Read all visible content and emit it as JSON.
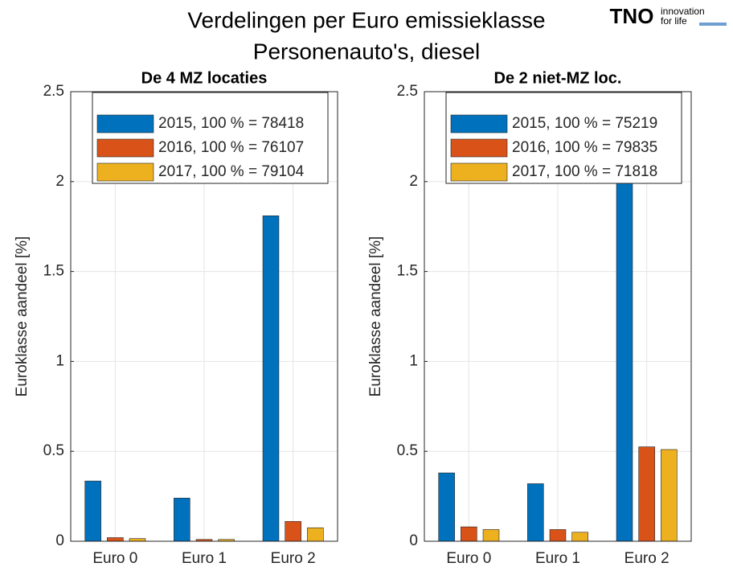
{
  "title": [
    "Verdelingen per Euro emissieklasse",
    "Personenauto's, diesel"
  ],
  "logo": {
    "brand": "TNO",
    "tagline": [
      "innovation",
      "for life"
    ]
  },
  "chart_data": [
    {
      "type": "bar",
      "title": "De 4 MZ locaties",
      "y_label": "Euroklasse aandeel [%]",
      "categories": [
        "Euro 0",
        "Euro 1",
        "Euro 2"
      ],
      "series": [
        {
          "name": "2015, 100 % = 78418",
          "color": "#0072bd",
          "values": [
            0.335,
            0.24,
            1.81
          ]
        },
        {
          "name": "2016, 100 % = 76107",
          "color": "#d95319",
          "values": [
            0.02,
            0.01,
            0.11
          ]
        },
        {
          "name": "2017, 100 % = 79104",
          "color": "#edb120",
          "values": [
            0.015,
            0.01,
            0.075
          ]
        }
      ],
      "ylim": [
        0,
        2.5
      ],
      "yticks": [
        0,
        0.5,
        1,
        1.5,
        2,
        2.5
      ],
      "grid": true,
      "legend": "north"
    },
    {
      "type": "bar",
      "title": "De 2 niet-MZ loc.",
      "y_label": "Euroklasse aandeel [%]",
      "categories": [
        "Euro 0",
        "Euro 1",
        "Euro 2"
      ],
      "series": [
        {
          "name": "2015, 100 % = 75219",
          "color": "#0072bd",
          "values": [
            0.38,
            0.32,
            2.6
          ]
        },
        {
          "name": "2016, 100 % = 79835",
          "color": "#d95319",
          "values": [
            0.08,
            0.065,
            0.525
          ]
        },
        {
          "name": "2017, 100 % = 71818",
          "color": "#edb120",
          "values": [
            0.065,
            0.05,
            0.51
          ]
        }
      ],
      "ylim": [
        0,
        2.5
      ],
      "yticks": [
        0,
        0.5,
        1,
        1.5,
        2,
        2.5
      ],
      "grid": true,
      "legend": "north"
    }
  ]
}
